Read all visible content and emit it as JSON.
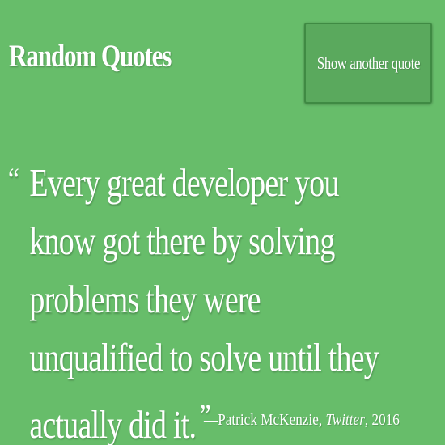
{
  "header": {
    "title": "Random Quotes",
    "button_label": "Show another quote"
  },
  "quote": {
    "open_mark": "“",
    "text": "Every great developer you know got there by solving problems they were unqualified to solve until they actually did it.",
    "close_mark": "”"
  },
  "attribution": {
    "prefix": "—Patrick McKenzie, ",
    "source": "Twitter",
    "suffix": ", 2016"
  },
  "colors": {
    "background": "#67bd6a",
    "button": "#5aa95d",
    "button_border": "#3f8a43",
    "text": "#ffffff"
  }
}
